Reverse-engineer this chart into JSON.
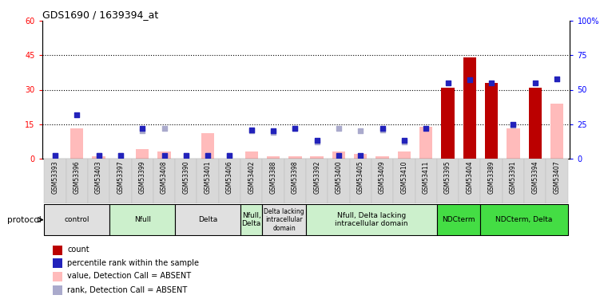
{
  "title": "GDS1690 / 1639394_at",
  "samples": [
    "GSM53393",
    "GSM53396",
    "GSM53403",
    "GSM53397",
    "GSM53399",
    "GSM53408",
    "GSM53390",
    "GSM53401",
    "GSM53406",
    "GSM53402",
    "GSM53388",
    "GSM53398",
    "GSM53392",
    "GSM53400",
    "GSM53405",
    "GSM53409",
    "GSM53410",
    "GSM53411",
    "GSM53395",
    "GSM53404",
    "GSM53389",
    "GSM53391",
    "GSM53394",
    "GSM53407"
  ],
  "count_values": [
    0,
    0,
    0,
    0,
    0,
    0,
    0,
    0,
    0,
    0,
    0,
    0,
    0,
    0,
    0,
    0,
    0,
    0,
    31,
    44,
    33,
    0,
    31,
    0
  ],
  "percentile_values": [
    2,
    32,
    2,
    2,
    22,
    2,
    2,
    2,
    2,
    21,
    20,
    22,
    13,
    2,
    2,
    22,
    13,
    22,
    55,
    57,
    55,
    25,
    55,
    58
  ],
  "value_absent": [
    0,
    13,
    1,
    0,
    4,
    3,
    0,
    11,
    0,
    3,
    1,
    1,
    1,
    3,
    2,
    1,
    3,
    14,
    0,
    33,
    14,
    13,
    0,
    24
  ],
  "rank_absent": [
    2,
    0,
    2,
    2,
    20,
    22,
    2,
    2,
    2,
    20,
    19,
    22,
    12,
    22,
    20,
    21,
    12,
    0,
    0,
    0,
    0,
    24,
    0,
    0
  ],
  "groups": [
    {
      "label": "control",
      "start": 0,
      "end": 3,
      "color": "#e0e0e0"
    },
    {
      "label": "Nfull",
      "start": 3,
      "end": 6,
      "color": "#ccf0cc"
    },
    {
      "label": "Delta",
      "start": 6,
      "end": 9,
      "color": "#e0e0e0"
    },
    {
      "label": "Nfull,\nDelta",
      "start": 9,
      "end": 10,
      "color": "#ccf0cc"
    },
    {
      "label": "Delta lacking\nintracellular\ndomain",
      "start": 10,
      "end": 12,
      "color": "#e0e0e0"
    },
    {
      "label": "Nfull, Delta lacking\nintracellular domain",
      "start": 12,
      "end": 18,
      "color": "#ccf0cc"
    },
    {
      "label": "NDCterm",
      "start": 18,
      "end": 20,
      "color": "#44dd44"
    },
    {
      "label": "NDCterm, Delta",
      "start": 20,
      "end": 24,
      "color": "#44dd44"
    }
  ],
  "ylim_left": [
    0,
    60
  ],
  "ylim_right": [
    0,
    100
  ],
  "yticks_left": [
    0,
    15,
    30,
    45,
    60
  ],
  "yticks_right": [
    0,
    25,
    50,
    75,
    100
  ],
  "ytick_labels_left": [
    "0",
    "15",
    "30",
    "45",
    "60"
  ],
  "ytick_labels_right": [
    "0",
    "25",
    "50",
    "75",
    "100%"
  ],
  "hlines": [
    15,
    30,
    45
  ],
  "bar_color_count": "#bb0000",
  "bar_color_absent_value": "#ffbbbb",
  "square_color_percentile": "#2222bb",
  "square_color_rank_absent": "#aaaacc",
  "legend_items": [
    {
      "color": "#bb0000",
      "label": "count",
      "shape": "square"
    },
    {
      "color": "#2222bb",
      "label": "percentile rank within the sample",
      "shape": "square"
    },
    {
      "color": "#ffbbbb",
      "label": "value, Detection Call = ABSENT",
      "shape": "square"
    },
    {
      "color": "#aaaacc",
      "label": "rank, Detection Call = ABSENT",
      "shape": "square"
    }
  ]
}
